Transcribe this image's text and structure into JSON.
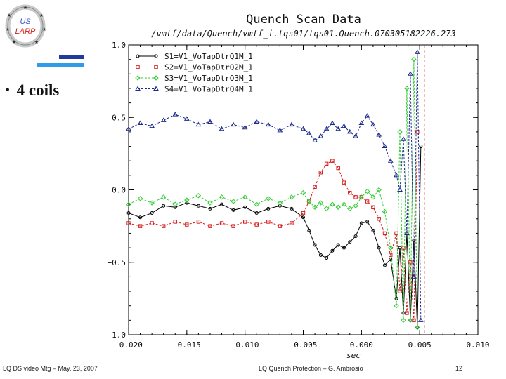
{
  "logo": {
    "line1": "US",
    "line2": "LARP"
  },
  "bullet": {
    "text": "4 coils"
  },
  "footer": {
    "left": "LQ DS video Mtg – May. 23, 2007",
    "center": "LQ Quench Protection – G. Ambrosio",
    "page": "12"
  },
  "chart_data": {
    "type": "line",
    "title": "Quench Scan Data",
    "subtitle": "/vmtf/data/Quench/vmtf_i.tqs01/tqs01.Quench.070305182226.273",
    "xlabel": "sec",
    "ylabel": "",
    "xlim": [
      -0.02,
      0.01
    ],
    "ylim": [
      -1.0,
      1.0
    ],
    "xticks": [
      "−0.020",
      "−0.015",
      "−0.010",
      "−0.005",
      "0.000",
      "0.005",
      "0.010"
    ],
    "yticks": [
      "1.0",
      "0.5",
      "0.0",
      "−0.5",
      "−1.0"
    ],
    "vline_x": 0.0054,
    "legend": [
      {
        "name": "S1=V1_VoTapDtrQ1M_1",
        "color": "#000000",
        "marker": "o",
        "dash": "solid"
      },
      {
        "name": "S2=V1_VoTapDtrQ2M_1",
        "color": "#d41a1a",
        "marker": "s",
        "dash": "dashed"
      },
      {
        "name": "S3=V1_VoTapDtrQ3M_1",
        "color": "#33cc33",
        "marker": "d",
        "dash": "dashed"
      },
      {
        "name": "S4=V1_VoTapDtrQ4M_1",
        "color": "#1a2a8c",
        "marker": "t",
        "dash": "dashed"
      }
    ],
    "series": [
      {
        "name": "S1",
        "x": [
          -0.02,
          -0.019,
          -0.018,
          -0.017,
          -0.016,
          -0.015,
          -0.014,
          -0.013,
          -0.012,
          -0.011,
          -0.01,
          -0.009,
          -0.008,
          -0.007,
          -0.006,
          -0.005,
          -0.0045,
          -0.004,
          -0.0035,
          -0.003,
          -0.0025,
          -0.002,
          -0.0015,
          -0.001,
          -0.0005,
          0.0,
          0.0005,
          0.001,
          0.0015,
          0.002,
          0.0025,
          0.003,
          0.0033,
          0.0036,
          0.0039,
          0.0042,
          0.0045,
          0.0048,
          0.0051
        ],
        "y": [
          -0.16,
          -0.19,
          -0.16,
          -0.11,
          -0.12,
          -0.09,
          -0.11,
          -0.13,
          -0.1,
          -0.14,
          -0.12,
          -0.16,
          -0.13,
          -0.11,
          -0.13,
          -0.19,
          -0.28,
          -0.38,
          -0.45,
          -0.47,
          -0.42,
          -0.38,
          -0.4,
          -0.36,
          -0.32,
          -0.23,
          -0.22,
          -0.28,
          -0.4,
          -0.52,
          -0.48,
          -0.75,
          -0.4,
          -0.85,
          -0.3,
          -0.9,
          -0.35,
          -0.95,
          0.3
        ]
      },
      {
        "name": "S2",
        "x": [
          -0.02,
          -0.019,
          -0.018,
          -0.017,
          -0.016,
          -0.015,
          -0.014,
          -0.013,
          -0.012,
          -0.011,
          -0.01,
          -0.009,
          -0.008,
          -0.007,
          -0.006,
          -0.005,
          -0.0045,
          -0.004,
          -0.0035,
          -0.003,
          -0.0025,
          -0.002,
          -0.0015,
          -0.001,
          -0.0005,
          0.0,
          0.0005,
          0.001,
          0.0015,
          0.002,
          0.0025,
          0.003,
          0.0033,
          0.0036,
          0.0039,
          0.0042,
          0.0045,
          0.0048
        ],
        "y": [
          -0.23,
          -0.25,
          -0.23,
          -0.25,
          -0.22,
          -0.24,
          -0.22,
          -0.25,
          -0.23,
          -0.25,
          -0.22,
          -0.24,
          -0.22,
          -0.25,
          -0.23,
          -0.16,
          -0.08,
          0.02,
          0.12,
          0.18,
          0.2,
          0.15,
          0.05,
          -0.02,
          -0.05,
          -0.05,
          -0.08,
          -0.12,
          -0.2,
          -0.3,
          -0.45,
          -0.3,
          -0.7,
          -0.4,
          -0.85,
          -0.5,
          -0.9,
          0.4
        ]
      },
      {
        "name": "S3",
        "x": [
          -0.02,
          -0.019,
          -0.018,
          -0.017,
          -0.016,
          -0.015,
          -0.014,
          -0.013,
          -0.012,
          -0.011,
          -0.01,
          -0.009,
          -0.008,
          -0.007,
          -0.006,
          -0.005,
          -0.0045,
          -0.004,
          -0.0035,
          -0.003,
          -0.0025,
          -0.002,
          -0.0015,
          -0.001,
          -0.0005,
          0.0,
          0.0005,
          0.001,
          0.0015,
          0.002,
          0.0025,
          0.003,
          0.0033,
          0.0036,
          0.0039,
          0.0042,
          0.0045,
          0.0048
        ],
        "y": [
          -0.1,
          -0.06,
          -0.09,
          -0.05,
          -0.1,
          -0.07,
          -0.04,
          -0.09,
          -0.05,
          -0.08,
          -0.05,
          -0.1,
          -0.06,
          -0.09,
          -0.05,
          -0.02,
          -0.08,
          -0.12,
          -0.09,
          -0.13,
          -0.1,
          -0.12,
          -0.1,
          -0.13,
          -0.11,
          -0.05,
          -0.01,
          -0.05,
          0.0,
          -0.15,
          -0.4,
          -0.8,
          0.4,
          -0.9,
          0.7,
          -0.9,
          0.9,
          -0.95
        ]
      },
      {
        "name": "S4",
        "x": [
          -0.02,
          -0.019,
          -0.018,
          -0.017,
          -0.016,
          -0.015,
          -0.014,
          -0.013,
          -0.012,
          -0.011,
          -0.01,
          -0.009,
          -0.008,
          -0.007,
          -0.006,
          -0.005,
          -0.0045,
          -0.004,
          -0.0035,
          -0.003,
          -0.0025,
          -0.002,
          -0.0015,
          -0.001,
          -0.0005,
          0.0,
          0.0005,
          0.001,
          0.0015,
          0.002,
          0.0025,
          0.003,
          0.0033,
          0.0036,
          0.0039,
          0.0042,
          0.0045,
          0.0048,
          0.0051
        ],
        "y": [
          0.42,
          0.46,
          0.44,
          0.48,
          0.52,
          0.49,
          0.45,
          0.47,
          0.42,
          0.45,
          0.43,
          0.47,
          0.45,
          0.41,
          0.45,
          0.42,
          0.39,
          0.34,
          0.37,
          0.42,
          0.46,
          0.42,
          0.44,
          0.4,
          0.37,
          0.46,
          0.51,
          0.45,
          0.38,
          0.3,
          0.2,
          0.1,
          0.0,
          0.35,
          -0.3,
          0.8,
          -0.6,
          0.95,
          -0.9
        ]
      }
    ]
  }
}
